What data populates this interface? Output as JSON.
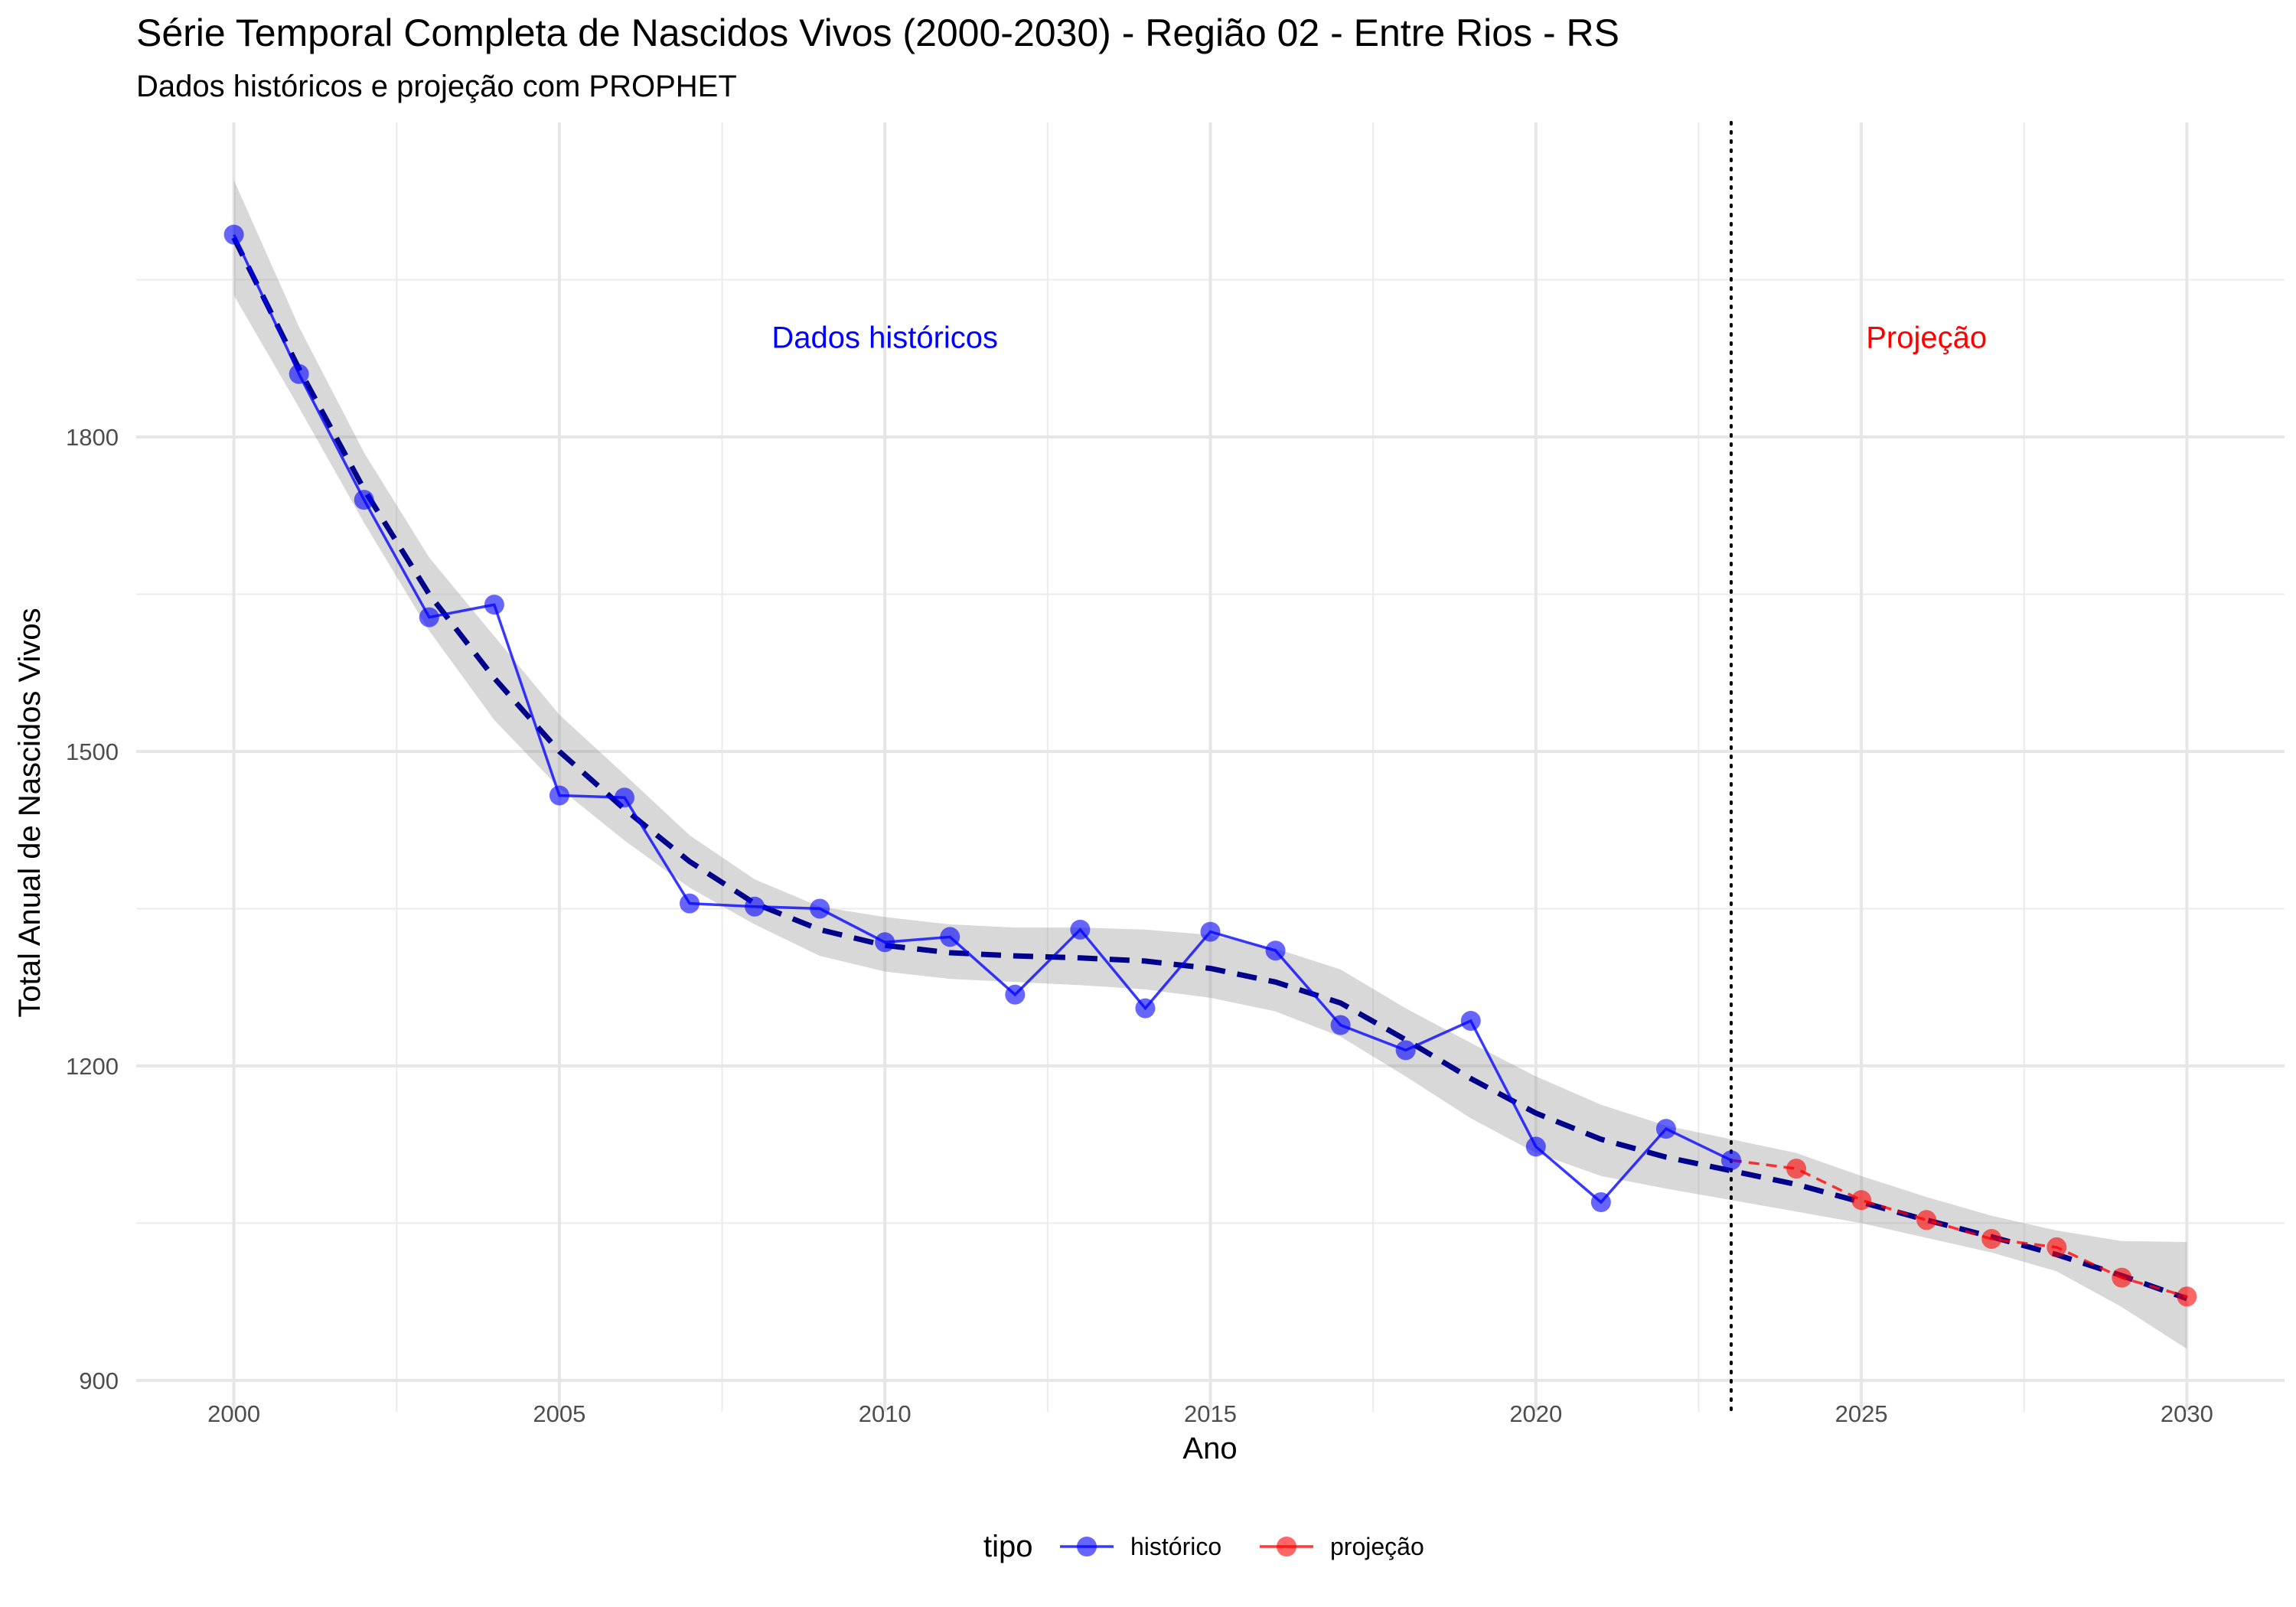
{
  "chart_data": {
    "type": "line",
    "title": "Série Temporal Completa de Nascidos Vivos (2000-2030) -  Região 02 - Entre Rios - RS",
    "subtitle": "Dados históricos e projeção com PROPHET",
    "xlabel": "Ano",
    "ylabel": "Total Anual de Nascidos Vivos",
    "xlim": [
      1998.5,
      2031.5
    ],
    "ylim": [
      870,
      2100
    ],
    "x_ticks": [
      2000,
      2005,
      2010,
      2015,
      2020,
      2025,
      2030
    ],
    "y_ticks": [
      900,
      1200,
      1500,
      1800
    ],
    "grid": true,
    "legend": {
      "title": "tipo",
      "position": "bottom",
      "entries": [
        {
          "label": "histórico",
          "color": "#0000ff"
        },
        {
          "label": "projeção",
          "color": "#ff0000"
        }
      ]
    },
    "annotations": [
      {
        "text": "Dados históricos",
        "x": 2010,
        "y": 1885,
        "color": "#0000ff"
      },
      {
        "text": "Projeção",
        "x": 2026,
        "y": 1885,
        "color": "#ff0000"
      }
    ],
    "vline": {
      "x": 2023,
      "style": "dotted",
      "color": "#000000"
    },
    "series": [
      {
        "name": "histórico",
        "color": "#0000ff",
        "x": [
          2000,
          2001,
          2002,
          2003,
          2004,
          2005,
          2006,
          2007,
          2008,
          2009,
          2010,
          2011,
          2012,
          2013,
          2014,
          2015,
          2016,
          2017,
          2018,
          2019,
          2020,
          2021,
          2022,
          2023
        ],
        "values": [
          1993,
          1860,
          1740,
          1628,
          1640,
          1458,
          1456,
          1355,
          1352,
          1350,
          1318,
          1323,
          1268,
          1330,
          1255,
          1328,
          1310,
          1239,
          1215,
          1243,
          1123,
          1070,
          1140,
          1110
        ]
      },
      {
        "name": "projeção",
        "color": "#ff0000",
        "x": [
          2024,
          2025,
          2026,
          2027,
          2028,
          2029,
          2030
        ],
        "values": [
          1102,
          1072,
          1053,
          1035,
          1027,
          998,
          980
        ]
      }
    ],
    "trend": {
      "color": "#00008b",
      "style": "dashed",
      "x": [
        2000,
        2001,
        2002,
        2003,
        2004,
        2005,
        2006,
        2007,
        2008,
        2009,
        2010,
        2011,
        2012,
        2013,
        2014,
        2015,
        2016,
        2017,
        2018,
        2019,
        2020,
        2021,
        2022,
        2023,
        2024,
        2025,
        2026,
        2027,
        2028,
        2029,
        2030
      ],
      "y": [
        1990,
        1865,
        1750,
        1650,
        1570,
        1500,
        1445,
        1395,
        1355,
        1330,
        1315,
        1308,
        1305,
        1303,
        1300,
        1293,
        1280,
        1260,
        1225,
        1188,
        1155,
        1130,
        1113,
        1100,
        1087,
        1070,
        1053,
        1037,
        1020,
        1000,
        978
      ],
      "ci_lower": [
        1935,
        1828,
        1718,
        1615,
        1530,
        1465,
        1415,
        1370,
        1335,
        1305,
        1290,
        1283,
        1280,
        1277,
        1273,
        1265,
        1252,
        1228,
        1190,
        1150,
        1117,
        1095,
        1083,
        1072,
        1061,
        1050,
        1036,
        1022,
        1004,
        970,
        930
      ],
      "ci_upper": [
        2045,
        1905,
        1785,
        1685,
        1610,
        1535,
        1478,
        1420,
        1378,
        1352,
        1342,
        1335,
        1332,
        1332,
        1330,
        1325,
        1312,
        1292,
        1255,
        1222,
        1190,
        1163,
        1143,
        1130,
        1117,
        1095,
        1075,
        1057,
        1043,
        1033,
        1032
      ]
    }
  }
}
